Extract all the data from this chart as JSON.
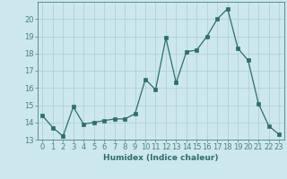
{
  "x": [
    0,
    1,
    2,
    3,
    4,
    5,
    6,
    7,
    8,
    9,
    10,
    11,
    12,
    13,
    14,
    15,
    16,
    17,
    18,
    19,
    20,
    21,
    22,
    23
  ],
  "y": [
    14.4,
    13.7,
    13.2,
    14.9,
    13.9,
    14.0,
    14.1,
    14.2,
    14.2,
    14.5,
    16.5,
    15.9,
    18.9,
    16.3,
    18.1,
    18.2,
    19.0,
    20.0,
    20.6,
    18.3,
    17.6,
    15.1,
    13.8,
    13.3
  ],
  "line_color": "#2d6e6e",
  "marker_color": "#2d6e6e",
  "bg_color": "#cce8ec",
  "grid_color": "#aacdd4",
  "xlabel": "Humidex (Indice chaleur)",
  "xlim": [
    -0.5,
    23.5
  ],
  "ylim": [
    13,
    21.0
  ],
  "yticks": [
    13,
    14,
    15,
    16,
    17,
    18,
    19,
    20
  ],
  "xticks": [
    0,
    1,
    2,
    3,
    4,
    5,
    6,
    7,
    8,
    9,
    10,
    11,
    12,
    13,
    14,
    15,
    16,
    17,
    18,
    19,
    20,
    21,
    22,
    23
  ],
  "font_color": "#2d6e6e",
  "axis_color": "#4a8080",
  "label_fontsize": 6.5,
  "tick_fontsize": 6.0
}
